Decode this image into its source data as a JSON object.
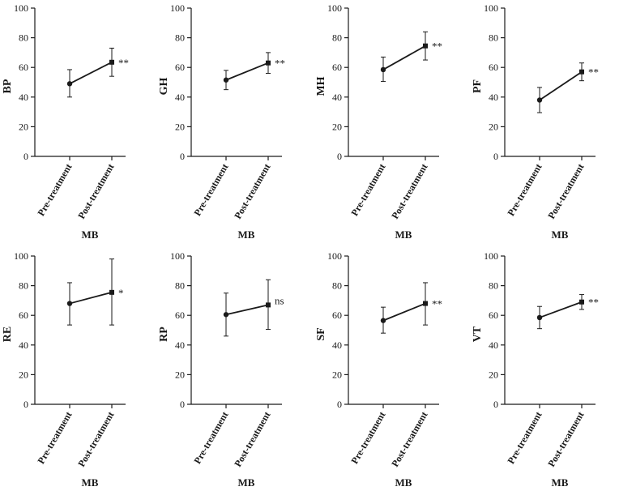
{
  "chart_data": [
    {
      "type": "line",
      "ylabel": "BP",
      "xlabel": "MB",
      "categories": [
        "Pre-treatment",
        "Post-treatment"
      ],
      "values": [
        49,
        63.5
      ],
      "error_low": [
        40,
        54
      ],
      "error_high": [
        58.5,
        73
      ],
      "ylim": [
        0,
        100
      ],
      "yticks": [
        "0",
        "20",
        "40",
        "60",
        "80",
        "100"
      ],
      "significance": "**"
    },
    {
      "type": "line",
      "ylabel": "GH",
      "xlabel": "MB",
      "categories": [
        "Pre-treatment",
        "Post-treatment"
      ],
      "values": [
        51.5,
        63
      ],
      "error_low": [
        45,
        56
      ],
      "error_high": [
        58,
        70
      ],
      "ylim": [
        0,
        100
      ],
      "yticks": [
        "0",
        "20",
        "40",
        "60",
        "80",
        "100"
      ],
      "significance": "**"
    },
    {
      "type": "line",
      "ylabel": "MH",
      "xlabel": "MB",
      "categories": [
        "Pre-treatment",
        "Post-treatment"
      ],
      "values": [
        58.5,
        74.5
      ],
      "error_low": [
        50.5,
        65
      ],
      "error_high": [
        67,
        84
      ],
      "ylim": [
        0,
        100
      ],
      "yticks": [
        "0",
        "20",
        "40",
        "60",
        "80",
        "100"
      ],
      "significance": "**"
    },
    {
      "type": "line",
      "ylabel": "PF",
      "xlabel": "MB",
      "categories": [
        "Pre-treatment",
        "Post-treatment"
      ],
      "values": [
        38,
        57
      ],
      "error_low": [
        29.5,
        51
      ],
      "error_high": [
        46.5,
        63
      ],
      "ylim": [
        0,
        100
      ],
      "yticks": [
        "0",
        "20",
        "40",
        "60",
        "80",
        "100"
      ],
      "significance": "**"
    },
    {
      "type": "line",
      "ylabel": "RE",
      "xlabel": "MB",
      "categories": [
        "Pre-treatment",
        "Post-treatment"
      ],
      "values": [
        68,
        75.5
      ],
      "error_low": [
        53.5,
        53.5
      ],
      "error_high": [
        82,
        98
      ],
      "ylim": [
        0,
        100
      ],
      "yticks": [
        "0",
        "20",
        "40",
        "60",
        "80",
        "100"
      ],
      "significance": "*"
    },
    {
      "type": "line",
      "ylabel": "RP",
      "xlabel": "MB",
      "categories": [
        "Pre-treatment",
        "Post-treatment"
      ],
      "values": [
        60.5,
        67
      ],
      "error_low": [
        46,
        50.5
      ],
      "error_high": [
        75,
        84
      ],
      "ylim": [
        0,
        100
      ],
      "yticks": [
        "0",
        "20",
        "40",
        "60",
        "80",
        "100"
      ],
      "significance": "ns"
    },
    {
      "type": "line",
      "ylabel": "SF",
      "xlabel": "MB",
      "categories": [
        "Pre-treatment",
        "Post-treatment"
      ],
      "values": [
        56.5,
        68
      ],
      "error_low": [
        48,
        53.5
      ],
      "error_high": [
        65.5,
        82
      ],
      "ylim": [
        0,
        100
      ],
      "yticks": [
        "0",
        "20",
        "40",
        "60",
        "80",
        "100"
      ],
      "significance": "**"
    },
    {
      "type": "line",
      "ylabel": "VT",
      "xlabel": "MB",
      "categories": [
        "Pre-treatment",
        "Post-treatment"
      ],
      "values": [
        58.5,
        69
      ],
      "error_low": [
        51,
        64
      ],
      "error_high": [
        66,
        74
      ],
      "ylim": [
        0,
        100
      ],
      "yticks": [
        "0",
        "20",
        "40",
        "60",
        "80",
        "100"
      ],
      "significance": "**"
    }
  ]
}
